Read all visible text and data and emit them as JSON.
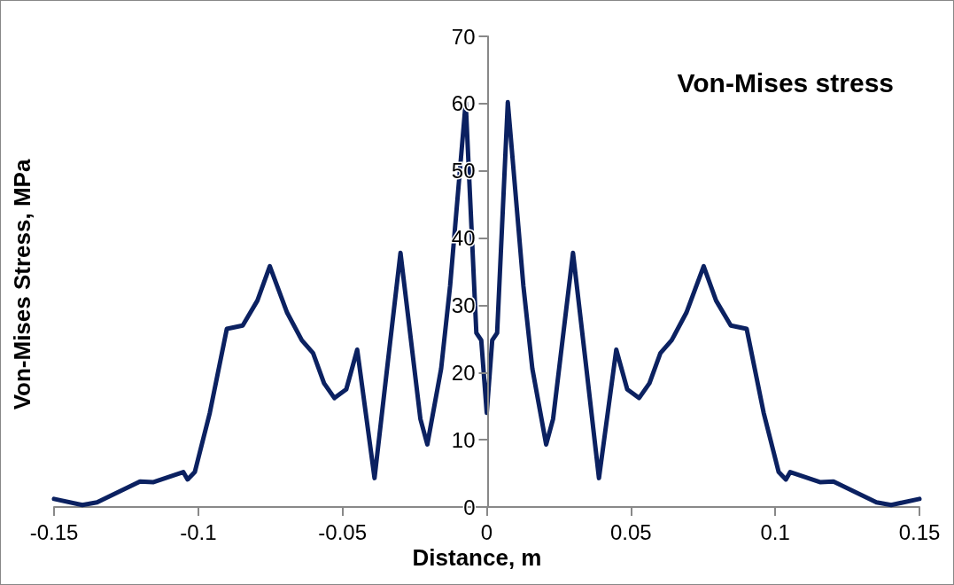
{
  "chart_data": {
    "type": "line",
    "title": "Von-Mises stress",
    "xlabel": "Distance, m",
    "ylabel": "Von-Mises Stress, MPa",
    "x": [
      -0.15,
      -0.1402,
      -0.1351,
      -0.1202,
      -0.1155,
      -0.1052,
      -0.1037,
      -0.1012,
      -0.096,
      -0.0901,
      -0.0846,
      -0.0795,
      -0.0752,
      -0.0692,
      -0.0641,
      -0.0602,
      -0.0564,
      -0.0528,
      -0.0487,
      -0.0449,
      -0.0389,
      -0.0343,
      -0.0299,
      -0.023,
      -0.0206,
      -0.0158,
      -0.0127,
      -0.0073,
      -0.0036,
      -0.0019,
      0,
      0.0019,
      0.0036,
      0.0073,
      0.0127,
      0.0158,
      0.0206,
      0.023,
      0.0299,
      0.0343,
      0.0389,
      0.0449,
      0.0487,
      0.0528,
      0.0564,
      0.0602,
      0.0641,
      0.0692,
      0.0752,
      0.0795,
      0.0846,
      0.0901,
      0.096,
      0.1012,
      0.1037,
      0.1052,
      0.1155,
      0.1202,
      0.1351,
      0.1402,
      0.15
    ],
    "series": [
      {
        "color": "#0b2161",
        "values": [
          1.2,
          0.3,
          0.7,
          3.8,
          3.7,
          5.2,
          4.1,
          5.2,
          14.0,
          26.5,
          27.0,
          30.7,
          35.8,
          28.9,
          24.8,
          22.9,
          18.4,
          16.2,
          17.5,
          23.4,
          4.3,
          21.5,
          37.8,
          13.1,
          9.3,
          20.6,
          32.9,
          60.2,
          25.9,
          24.8,
          14.0,
          24.8,
          25.9,
          60.2,
          32.9,
          20.6,
          9.3,
          13.1,
          37.8,
          21.5,
          4.3,
          23.4,
          17.5,
          16.2,
          18.4,
          22.9,
          24.8,
          28.9,
          35.8,
          30.7,
          27.0,
          26.5,
          14.0,
          5.2,
          4.1,
          5.2,
          3.7,
          3.8,
          0.7,
          0.3,
          1.2
        ]
      }
    ],
    "xlim": [
      -0.15,
      0.15
    ],
    "xticks": [
      -0.15,
      -0.1,
      -0.05,
      0,
      0.05,
      0.1,
      0.15
    ],
    "ylim": [
      0,
      70
    ],
    "yticks": [
      0,
      10,
      20,
      30,
      40,
      50,
      60,
      70
    ],
    "marker": "none",
    "line_style": "solid"
  }
}
